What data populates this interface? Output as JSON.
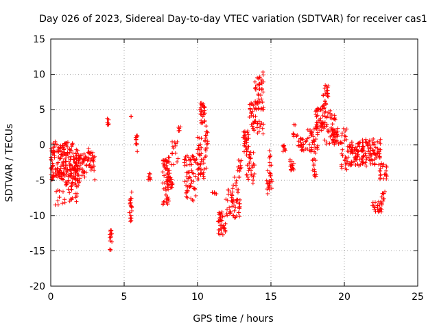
{
  "chart_data": {
    "type": "scatter",
    "title": "Day 026 of 2023, Sidereal Day-to-day VTEC variation (SDTVAR) for receiver cas1",
    "xlabel": "GPS time / hours",
    "ylabel": "SDTVAR / TECUs",
    "xlim": [
      0,
      25
    ],
    "ylim": [
      -20,
      15
    ],
    "xticks": [
      0,
      5,
      10,
      15,
      20,
      25
    ],
    "yticks": [
      -20,
      -15,
      -10,
      -5,
      0,
      5,
      10,
      15
    ],
    "xtick_labels": [
      "0",
      "5",
      "10",
      "15",
      "20",
      "25"
    ],
    "ytick_labels": [
      "-20",
      "-15",
      "-10",
      "-5",
      "0",
      "5",
      "10",
      "15"
    ],
    "grid": true,
    "marker": "+",
    "color": "#ff0000",
    "series": [
      {
        "name": "SDTVAR",
        "clusters": [
          {
            "x": [
              0.0,
              1.5
            ],
            "y": [
              -5,
              0.5
            ],
            "n": 140
          },
          {
            "x": [
              0.3,
              1.8
            ],
            "y": [
              -8.5,
              -3.5
            ],
            "n": 40
          },
          {
            "x": [
              1.0,
              2.0
            ],
            "y": [
              -6,
              -0.5
            ],
            "n": 60
          },
          {
            "x": [
              1.5,
              3.0
            ],
            "y": [
              -5,
              -1
            ],
            "n": 80
          },
          {
            "x": [
              2.3,
              2.8
            ],
            "y": [
              -3,
              -0.5
            ],
            "n": 15
          },
          {
            "x": [
              3.85,
              3.95
            ],
            "y": [
              2.8,
              3.8
            ],
            "n": 8
          },
          {
            "x": [
              4.0,
              4.2
            ],
            "y": [
              -15,
              -11.5
            ],
            "n": 14
          },
          {
            "x": [
              5.35,
              5.55
            ],
            "y": [
              -11,
              -6.5
            ],
            "n": 20
          },
          {
            "x": [
              5.45,
              5.5
            ],
            "y": [
              4,
              4.1
            ],
            "n": 2
          },
          {
            "x": [
              5.7,
              5.9
            ],
            "y": [
              -1,
              1.5
            ],
            "n": 12
          },
          {
            "x": [
              6.6,
              6.8
            ],
            "y": [
              -5,
              -4
            ],
            "n": 8
          },
          {
            "x": [
              7.6,
              8.1
            ],
            "y": [
              -8.5,
              -1.5
            ],
            "n": 55
          },
          {
            "x": [
              7.9,
              8.3
            ],
            "y": [
              -6.5,
              -4
            ],
            "n": 20
          },
          {
            "x": [
              8.2,
              8.7
            ],
            "y": [
              -3,
              0.5
            ],
            "n": 15
          },
          {
            "x": [
              8.7,
              8.85
            ],
            "y": [
              2,
              3
            ],
            "n": 5
          },
          {
            "x": [
              9.1,
              9.9
            ],
            "y": [
              -8,
              -1.5
            ],
            "n": 60
          },
          {
            "x": [
              9.9,
              10.6
            ],
            "y": [
              -5,
              -1.5
            ],
            "n": 30
          },
          {
            "x": [
              10.15,
              10.5
            ],
            "y": [
              3,
              6
            ],
            "n": 30
          },
          {
            "x": [
              10.0,
              10.3
            ],
            "y": [
              -1.5,
              1.5
            ],
            "n": 12
          },
          {
            "x": [
              10.5,
              10.7
            ],
            "y": [
              -1,
              3
            ],
            "n": 15
          },
          {
            "x": [
              11.0,
              11.3
            ],
            "y": [
              -7,
              -6.7
            ],
            "n": 6
          },
          {
            "x": [
              11.4,
              11.9
            ],
            "y": [
              -12.8,
              -9.5
            ],
            "n": 35
          },
          {
            "x": [
              11.9,
              12.4
            ],
            "y": [
              -10,
              -6
            ],
            "n": 25
          },
          {
            "x": [
              12.4,
              12.9
            ],
            "y": [
              -10.5,
              -4.5
            ],
            "n": 35
          },
          {
            "x": [
              12.7,
              13.0
            ],
            "y": [
              -4,
              -2
            ],
            "n": 10
          },
          {
            "x": [
              13.1,
              13.5
            ],
            "y": [
              -1,
              2
            ],
            "n": 30
          },
          {
            "x": [
              13.3,
              13.9
            ],
            "y": [
              -5.5,
              -1
            ],
            "n": 30
          },
          {
            "x": [
              13.5,
              14.0
            ],
            "y": [
              2,
              6
            ],
            "n": 30
          },
          {
            "x": [
              13.9,
              14.5
            ],
            "y": [
              5,
              10.5
            ],
            "n": 45
          },
          {
            "x": [
              14.0,
              14.5
            ],
            "y": [
              1.5,
              3.5
            ],
            "n": 12
          },
          {
            "x": [
              14.7,
              15.1
            ],
            "y": [
              -7,
              -0.5
            ],
            "n": 30
          },
          {
            "x": [
              15.8,
              16.0
            ],
            "y": [
              -1,
              0
            ],
            "n": 8
          },
          {
            "x": [
              16.3,
              16.6
            ],
            "y": [
              -4,
              -2
            ],
            "n": 15
          },
          {
            "x": [
              16.5,
              16.8
            ],
            "y": [
              1,
              3
            ],
            "n": 8
          },
          {
            "x": [
              16.8,
              17.5
            ],
            "y": [
              -1,
              1
            ],
            "n": 25
          },
          {
            "x": [
              17.5,
              18.2
            ],
            "y": [
              -1,
              3
            ],
            "n": 35
          },
          {
            "x": [
              17.8,
              18.1
            ],
            "y": [
              -4.5,
              -1
            ],
            "n": 15
          },
          {
            "x": [
              18.0,
              18.6
            ],
            "y": [
              2,
              5.5
            ],
            "n": 35
          },
          {
            "x": [
              18.5,
              18.9
            ],
            "y": [
              4,
              8.5
            ],
            "n": 30
          },
          {
            "x": [
              18.6,
              19.4
            ],
            "y": [
              0,
              5
            ],
            "n": 40
          },
          {
            "x": [
              19.2,
              19.8
            ],
            "y": [
              0,
              2.5
            ],
            "n": 25
          },
          {
            "x": [
              19.8,
              20.3
            ],
            "y": [
              -3.5,
              3
            ],
            "n": 30
          },
          {
            "x": [
              20.3,
              21.3
            ],
            "y": [
              -3,
              0.5
            ],
            "n": 70
          },
          {
            "x": [
              21.2,
              22.5
            ],
            "y": [
              -3,
              1
            ],
            "n": 80
          },
          {
            "x": [
              22.4,
              22.9
            ],
            "y": [
              -5,
              -2.5
            ],
            "n": 20
          },
          {
            "x": [
              21.9,
              22.6
            ],
            "y": [
              -9.5,
              -8
            ],
            "n": 25
          },
          {
            "x": [
              22.5,
              22.8
            ],
            "y": [
              -8,
              -6.5
            ],
            "n": 8
          }
        ]
      }
    ]
  }
}
